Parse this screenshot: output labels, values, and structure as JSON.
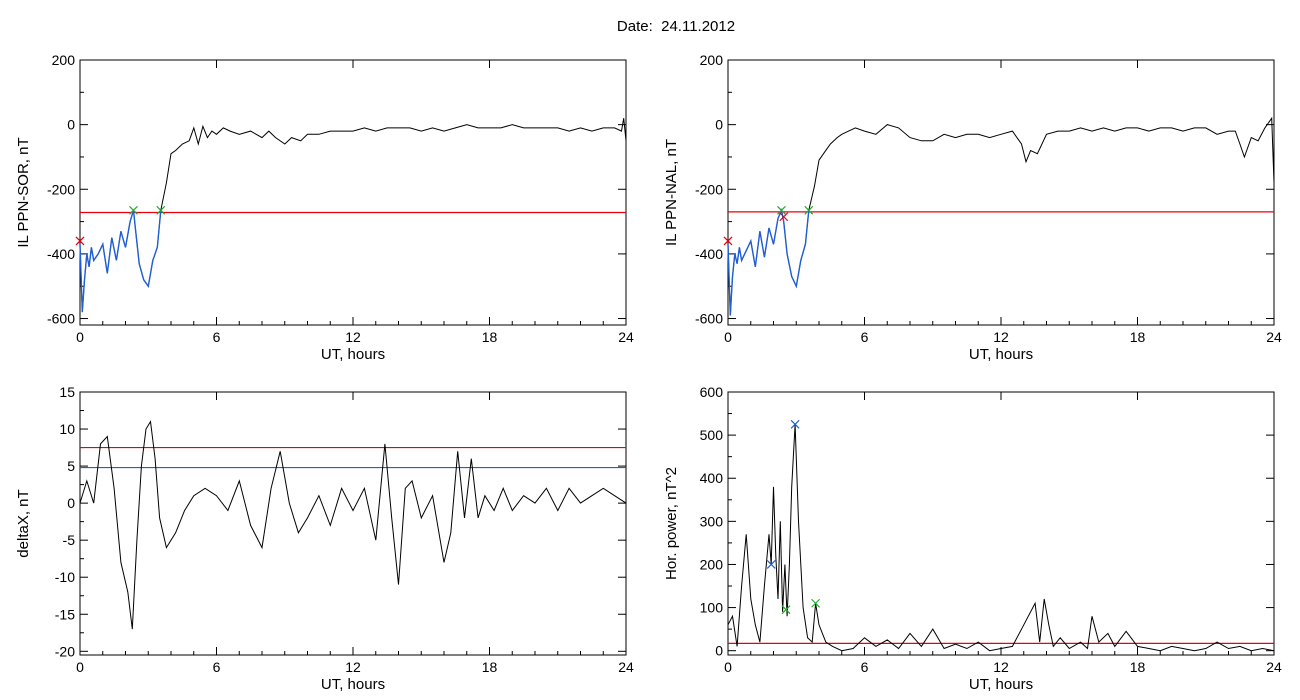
{
  "figure_title": "Date:  24.11.2012",
  "threshold_colors": {
    "red": "#e8000b",
    "blue": "#1f5fd6",
    "green": "#22a82c"
  },
  "chart_data": [
    {
      "type": "line",
      "xlabel": "UT, hours",
      "ylabel": "IL PPN-SOR, nT",
      "xlim": [
        0,
        24
      ],
      "ylim": [
        -620,
        200
      ],
      "xticks": [
        0,
        6,
        12,
        18,
        24
      ],
      "yticks": [
        -600,
        -400,
        -200,
        0,
        200
      ],
      "x": [
        0,
        0.1,
        0.2,
        0.3,
        0.4,
        0.5,
        0.6,
        0.8,
        1.0,
        1.2,
        1.4,
        1.6,
        1.8,
        2.0,
        2.2,
        2.35,
        2.45,
        2.6,
        2.8,
        3.0,
        3.2,
        3.4,
        3.55,
        3.8,
        4.0,
        4.2,
        4.5,
        4.8,
        5.0,
        5.2,
        5.4,
        5.6,
        5.8,
        6.0,
        6.3,
        6.6,
        7.0,
        7.5,
        8.0,
        8.3,
        8.6,
        9.0,
        9.3,
        9.7,
        10.0,
        10.5,
        11.0,
        11.5,
        12.0,
        12.5,
        13.0,
        13.5,
        14.0,
        14.5,
        15.0,
        15.5,
        16.0,
        16.5,
        17.0,
        17.5,
        18.0,
        18.5,
        19.0,
        19.5,
        20.0,
        20.5,
        21.0,
        21.5,
        22.0,
        22.5,
        23.0,
        23.5,
        23.8,
        23.9,
        24.0
      ],
      "series": [
        {
          "values": [
            -370,
            -580,
            -480,
            -400,
            -440,
            -380,
            -420,
            -400,
            -370,
            -460,
            -350,
            -420,
            -330,
            -380,
            -300,
            -265,
            -330,
            -430,
            -480,
            -500,
            -420,
            -380,
            -265,
            -180,
            -90,
            -80,
            -60,
            -50,
            -10,
            -60,
            -5,
            -40,
            -20,
            -30,
            -10,
            -20,
            -30,
            -20,
            -40,
            -20,
            -40,
            -60,
            -40,
            -50,
            -30,
            -30,
            -20,
            -20,
            -20,
            -10,
            -20,
            -10,
            -10,
            -10,
            -20,
            -10,
            -20,
            -10,
            0,
            -10,
            -10,
            -10,
            0,
            -10,
            -10,
            -10,
            -10,
            -20,
            -10,
            -20,
            -10,
            -10,
            -20,
            20,
            -50
          ]
        }
      ],
      "reference_lines": [
        {
          "y": -272,
          "color": "red"
        }
      ],
      "highlight": {
        "x_range": [
          0,
          3.55
        ],
        "color": "blue"
      },
      "markers": [
        {
          "x": 2.35,
          "y": -265,
          "color": "green"
        },
        {
          "x": 3.55,
          "y": -265,
          "color": "green"
        },
        {
          "x": 0,
          "y": -360,
          "color": "red"
        }
      ]
    },
    {
      "type": "line",
      "xlabel": "UT, hours",
      "ylabel": "IL PPN-NAL, nT",
      "xlim": [
        0,
        24
      ],
      "ylim": [
        -620,
        200
      ],
      "xticks": [
        0,
        6,
        12,
        18,
        24
      ],
      "yticks": [
        -600,
        -400,
        -200,
        0,
        200
      ],
      "x": [
        0,
        0.1,
        0.2,
        0.3,
        0.4,
        0.5,
        0.6,
        0.8,
        1.0,
        1.2,
        1.4,
        1.6,
        1.8,
        2.0,
        2.2,
        2.35,
        2.45,
        2.6,
        2.8,
        3.0,
        3.2,
        3.4,
        3.55,
        3.8,
        4.0,
        4.2,
        4.5,
        4.8,
        5.0,
        5.3,
        5.6,
        6.0,
        6.5,
        7.0,
        7.5,
        8.0,
        8.5,
        9.0,
        9.5,
        10.0,
        10.5,
        11.0,
        11.5,
        12.0,
        12.5,
        12.9,
        13.1,
        13.3,
        13.6,
        14.0,
        14.5,
        15.0,
        15.5,
        16.0,
        16.5,
        17.0,
        17.5,
        18.0,
        18.5,
        19.0,
        19.5,
        20.0,
        20.5,
        21.0,
        21.5,
        22.0,
        22.3,
        22.5,
        22.7,
        23.0,
        23.3,
        23.6,
        23.9,
        24.0
      ],
      "series": [
        {
          "values": [
            -370,
            -590,
            -470,
            -400,
            -430,
            -380,
            -420,
            -390,
            -360,
            -440,
            -330,
            -410,
            -320,
            -370,
            -290,
            -265,
            -300,
            -400,
            -470,
            -500,
            -420,
            -370,
            -265,
            -190,
            -110,
            -90,
            -60,
            -40,
            -30,
            -20,
            -10,
            -20,
            -30,
            0,
            -10,
            -40,
            -50,
            -50,
            -30,
            -40,
            -30,
            -30,
            -40,
            -30,
            -20,
            -60,
            -115,
            -80,
            -90,
            -30,
            -20,
            -20,
            -10,
            -20,
            -10,
            -20,
            -10,
            -10,
            -20,
            -10,
            -10,
            -20,
            -10,
            -10,
            -30,
            -20,
            -20,
            -60,
            -100,
            -40,
            -50,
            -10,
            20,
            -180
          ]
        }
      ],
      "reference_lines": [
        {
          "y": -270,
          "color": "red"
        }
      ],
      "highlight": {
        "x_range": [
          0,
          3.55
        ],
        "color": "blue"
      },
      "markers": [
        {
          "x": 2.35,
          "y": -265,
          "color": "green"
        },
        {
          "x": 3.55,
          "y": -265,
          "color": "green"
        },
        {
          "x": 2.45,
          "y": -285,
          "color": "red"
        },
        {
          "x": 0,
          "y": -360,
          "color": "red"
        }
      ]
    },
    {
      "type": "line",
      "xlabel": "UT, hours",
      "ylabel": "deltaX, nT",
      "xlim": [
        0,
        24
      ],
      "ylim": [
        -20.5,
        15
      ],
      "xticks": [
        0,
        6,
        12,
        18,
        24
      ],
      "yticks": [
        -20,
        -15,
        -10,
        -5,
        0,
        5,
        10,
        15
      ],
      "x": [
        0,
        0.3,
        0.6,
        0.9,
        1.2,
        1.5,
        1.8,
        2.1,
        2.3,
        2.5,
        2.7,
        2.9,
        3.1,
        3.3,
        3.5,
        3.8,
        4.2,
        4.6,
        5.0,
        5.5,
        6.0,
        6.5,
        7.0,
        7.5,
        8.0,
        8.4,
        8.8,
        9.2,
        9.6,
        10.0,
        10.5,
        11.0,
        11.5,
        12.0,
        12.5,
        13.0,
        13.4,
        13.7,
        14.0,
        14.3,
        14.6,
        15.0,
        15.5,
        16.0,
        16.3,
        16.6,
        16.9,
        17.2,
        17.5,
        17.8,
        18.2,
        18.6,
        19.0,
        19.5,
        20.0,
        20.5,
        21.0,
        21.5,
        22.0,
        22.5,
        23.0,
        23.5,
        24.0
      ],
      "series": [
        {
          "values": [
            0,
            3,
            0,
            8,
            9,
            2,
            -8,
            -12,
            -17,
            -5,
            5,
            10,
            11,
            6,
            -2,
            -6,
            -4,
            -1,
            1,
            2,
            1,
            -1,
            3,
            -3,
            -6,
            2,
            7,
            0,
            -4,
            -2,
            1,
            -3,
            2,
            -1,
            2,
            -5,
            8,
            -2,
            -11,
            2,
            3,
            -2,
            1,
            -8,
            -4,
            7,
            -2,
            6,
            -2,
            1,
            -1,
            2,
            -1,
            1,
            0,
            2,
            -1,
            2,
            0,
            1,
            2,
            1,
            0
          ]
        }
      ],
      "reference_lines": [
        {
          "y": 7.5,
          "color": "red"
        },
        {
          "y": 4.8,
          "color": "blue"
        }
      ]
    },
    {
      "type": "line",
      "xlabel": "UT, hours",
      "ylabel": "Hor. power, nT^2",
      "xlim": [
        0,
        24
      ],
      "ylim": [
        -10,
        600
      ],
      "xticks": [
        0,
        6,
        12,
        18,
        24
      ],
      "yticks": [
        0,
        100,
        200,
        300,
        400,
        500,
        600
      ],
      "x": [
        0,
        0.2,
        0.4,
        0.6,
        0.8,
        1.0,
        1.2,
        1.4,
        1.6,
        1.8,
        1.9,
        2.0,
        2.1,
        2.2,
        2.3,
        2.4,
        2.5,
        2.6,
        2.7,
        2.8,
        2.95,
        3.1,
        3.3,
        3.5,
        3.7,
        3.85,
        4.0,
        4.3,
        4.6,
        5.0,
        5.5,
        6.0,
        6.5,
        7.0,
        7.5,
        8.0,
        8.5,
        9.0,
        9.5,
        10.0,
        10.5,
        11.0,
        11.5,
        12.0,
        12.5,
        13.0,
        13.5,
        13.7,
        13.9,
        14.1,
        14.3,
        14.6,
        15.0,
        15.5,
        15.8,
        16.0,
        16.3,
        16.7,
        17.0,
        17.5,
        18.0,
        18.5,
        19.0,
        19.5,
        20.0,
        20.5,
        21.0,
        21.5,
        22.0,
        22.5,
        23.0,
        23.5,
        24.0
      ],
      "series": [
        {
          "values": [
            60,
            80,
            10,
            150,
            270,
            120,
            60,
            20,
            150,
            270,
            200,
            380,
            220,
            120,
            300,
            90,
            200,
            80,
            200,
            380,
            525,
            300,
            100,
            30,
            20,
            110,
            60,
            20,
            10,
            0,
            5,
            30,
            10,
            25,
            5,
            40,
            10,
            50,
            5,
            15,
            5,
            20,
            0,
            5,
            10,
            60,
            110,
            20,
            120,
            60,
            10,
            30,
            5,
            20,
            5,
            80,
            20,
            40,
            10,
            45,
            10,
            5,
            0,
            10,
            5,
            0,
            5,
            20,
            5,
            10,
            0,
            5,
            0
          ]
        }
      ],
      "reference_lines": [
        {
          "y": 17,
          "color": "red"
        }
      ],
      "markers": [
        {
          "x": 1.9,
          "y": 200,
          "color": "blue"
        },
        {
          "x": 2.55,
          "y": 95,
          "color": "green"
        },
        {
          "x": 2.95,
          "y": 525,
          "color": "blue"
        },
        {
          "x": 3.85,
          "y": 110,
          "color": "green"
        }
      ]
    }
  ]
}
